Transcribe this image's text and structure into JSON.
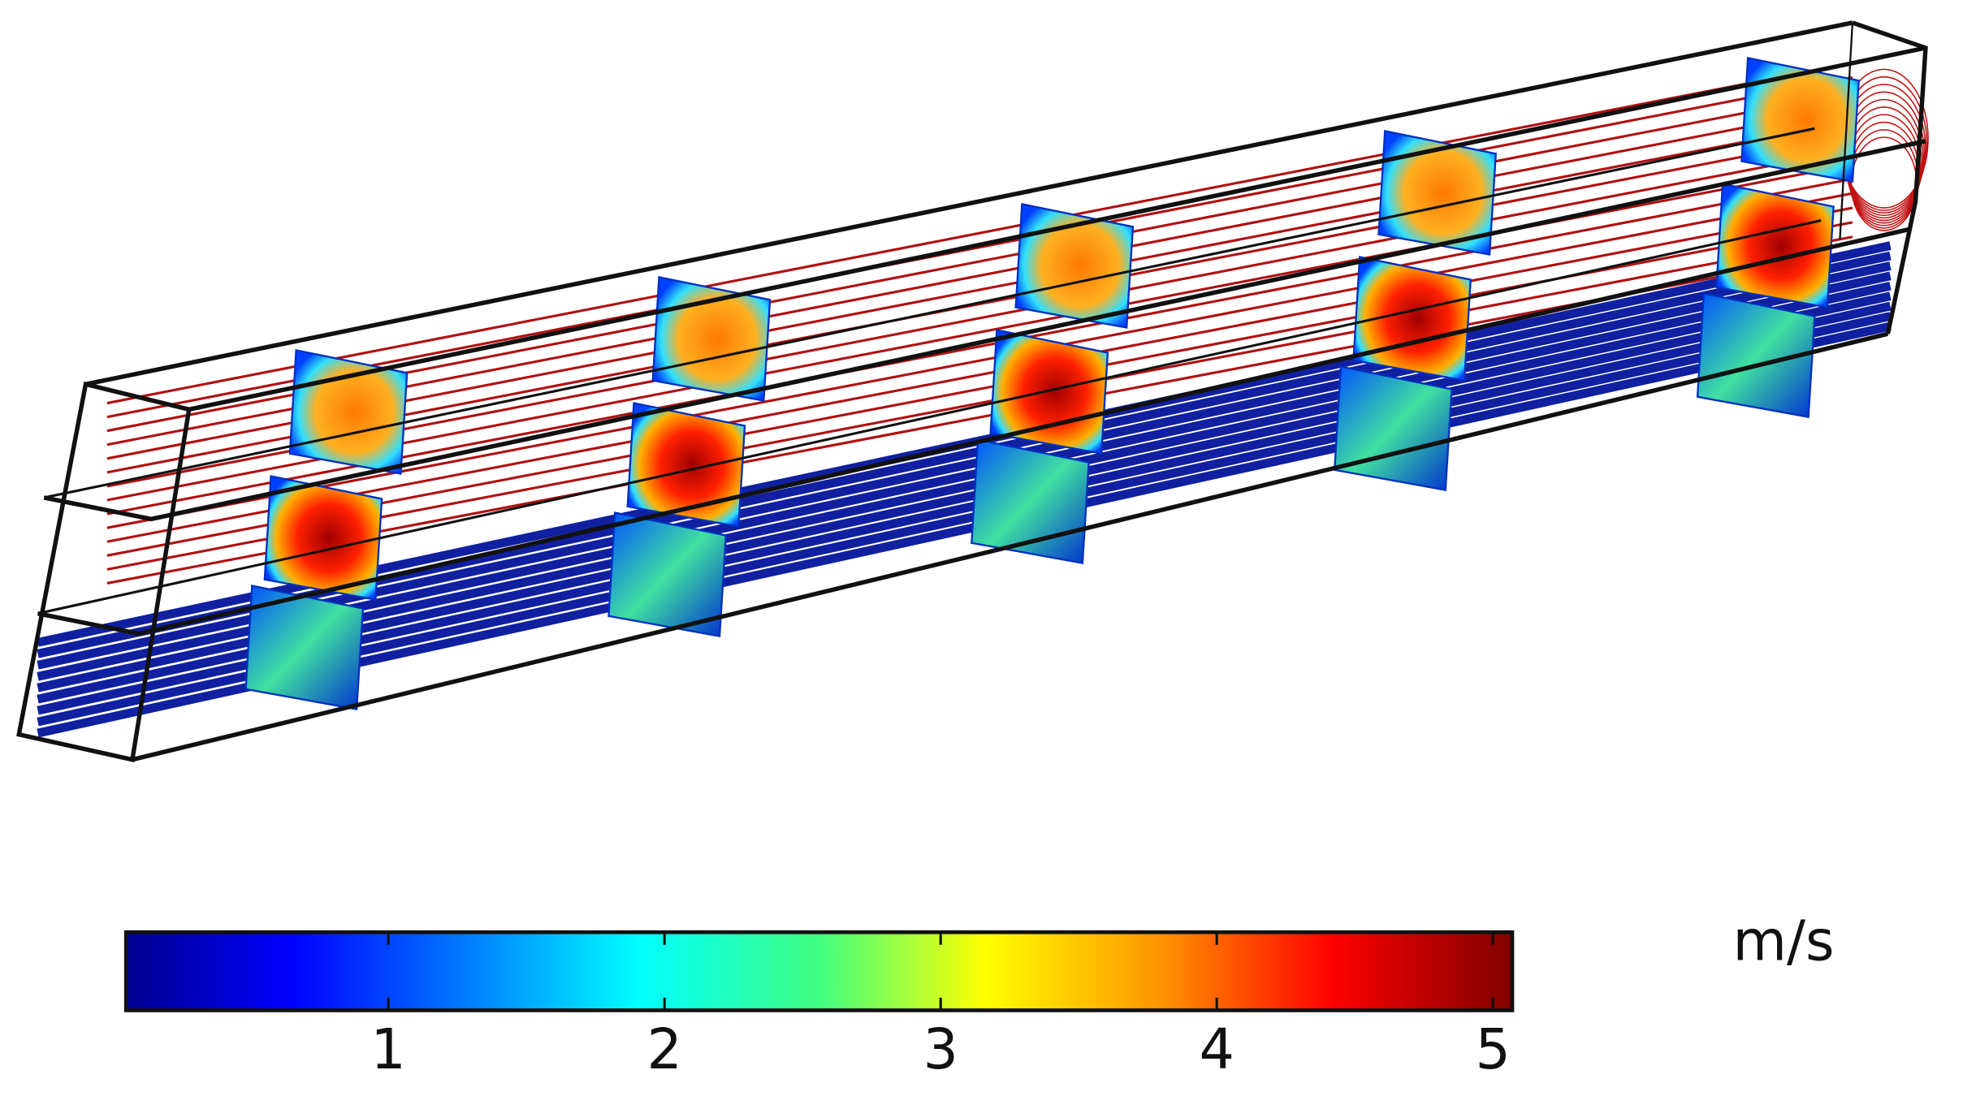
{
  "colorbar": {
    "unit": "m/s",
    "lim": [
      0.05,
      5.07
    ],
    "ticks": [
      1,
      2,
      3,
      4,
      5
    ]
  }
}
